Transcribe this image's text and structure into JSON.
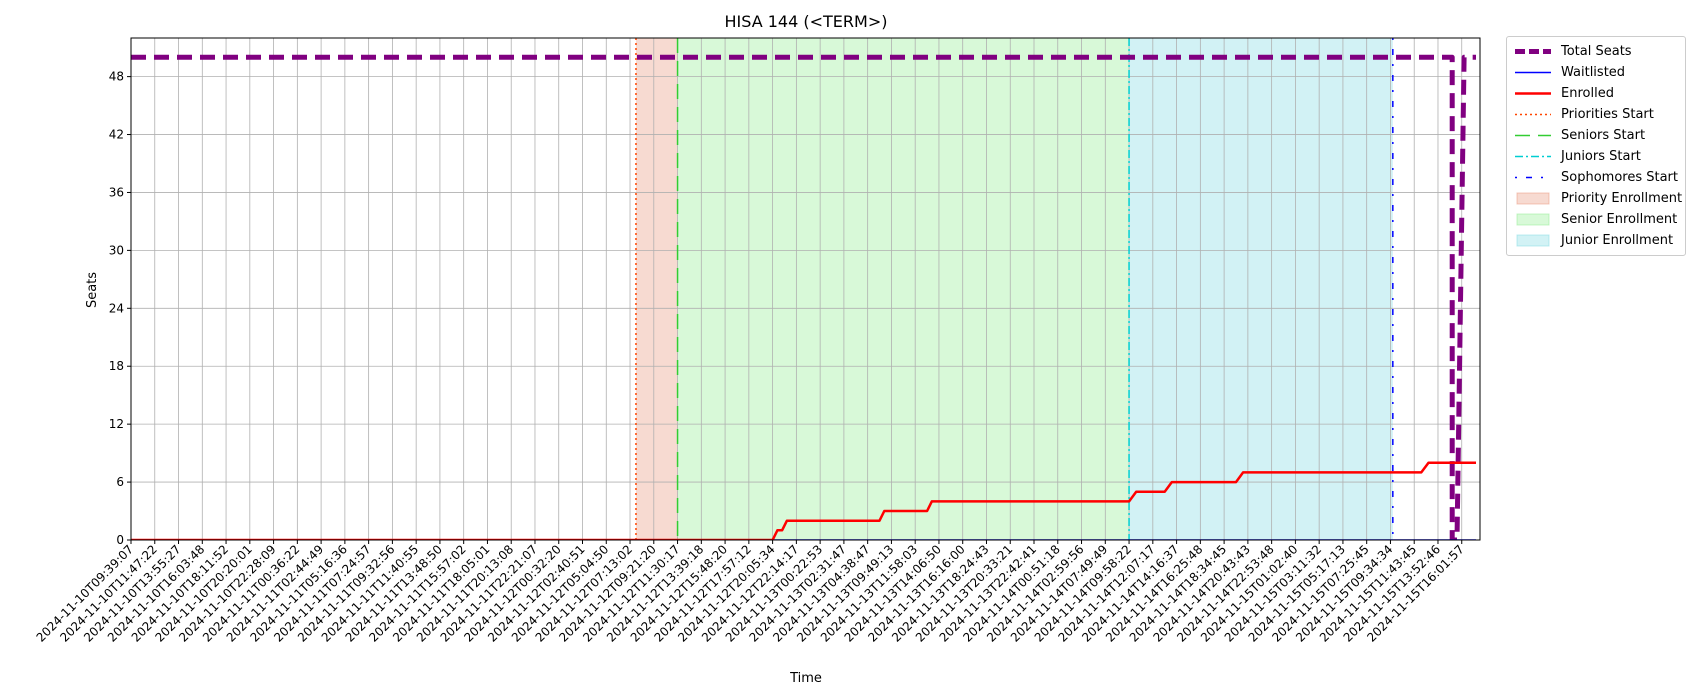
{
  "chart_data": {
    "type": "line",
    "title": "HISA 144 (<TERM>)",
    "xlabel": "Time",
    "ylabel": "Seats",
    "ylim": [
      0,
      52
    ],
    "yticks": [
      0,
      6,
      12,
      18,
      24,
      30,
      36,
      42,
      48
    ],
    "grid": true,
    "legend_position": "outside top-right",
    "x_tick_labels": [
      "2024-11-10T09:39:07",
      "2024-11-10T11:47:22",
      "2024-11-10T13:55:27",
      "2024-11-10T16:03:48",
      "2024-11-10T18:11:52",
      "2024-11-10T20:20:01",
      "2024-11-10T22:28:09",
      "2024-11-11T00:36:22",
      "2024-11-11T02:44:49",
      "2024-11-11T05:16:36",
      "2024-11-11T07:24:57",
      "2024-11-11T09:32:56",
      "2024-11-11T11:40:55",
      "2024-11-11T13:48:50",
      "2024-11-11T15:57:02",
      "2024-11-11T18:05:01",
      "2024-11-11T20:13:08",
      "2024-11-11T22:21:07",
      "2024-11-12T00:32:20",
      "2024-11-12T02:40:51",
      "2024-11-12T05:04:50",
      "2024-11-12T07:13:02",
      "2024-11-12T09:21:20",
      "2024-11-12T11:30:17",
      "2024-11-12T13:39:18",
      "2024-11-12T15:48:20",
      "2024-11-12T17:57:12",
      "2024-11-12T20:05:34",
      "2024-11-12T22:14:17",
      "2024-11-13T00:22:53",
      "2024-11-13T02:31:47",
      "2024-11-13T04:38:47",
      "2024-11-13T09:49:13",
      "2024-11-13T11:58:03",
      "2024-11-13T14:06:50",
      "2024-11-13T16:16:00",
      "2024-11-13T18:24:43",
      "2024-11-13T20:33:21",
      "2024-11-13T22:42:41",
      "2024-11-14T00:51:18",
      "2024-11-14T02:59:56",
      "2024-11-14T07:49:49",
      "2024-11-14T09:58:22",
      "2024-11-14T12:07:17",
      "2024-11-14T14:16:37",
      "2024-11-14T16:25:48",
      "2024-11-14T18:34:45",
      "2024-11-14T20:43:43",
      "2024-11-14T22:53:48",
      "2024-11-15T01:02:40",
      "2024-11-15T03:11:32",
      "2024-11-15T05:17:13",
      "2024-11-15T07:25:45",
      "2024-11-15T09:34:34",
      "2024-11-15T11:43:45",
      "2024-11-15T13:52:46",
      "2024-11-15T16:01:57"
    ],
    "series": [
      {
        "name": "Total Seats",
        "color": "#800080",
        "style": "dashed",
        "points": [
          [
            0,
            50
          ],
          [
            55.6,
            50
          ],
          [
            55.6,
            0
          ],
          [
            55.8,
            0
          ],
          [
            56.1,
            50
          ],
          [
            56.6,
            50
          ]
        ]
      },
      {
        "name": "Waitlisted",
        "color": "#0000ff",
        "style": "solid",
        "points": [
          [
            0,
            0
          ],
          [
            56.6,
            0
          ]
        ]
      },
      {
        "name": "Enrolled",
        "color": "#ff0000",
        "style": "solid",
        "points": [
          [
            0,
            0
          ],
          [
            27.0,
            0
          ],
          [
            27.2,
            1
          ],
          [
            27.4,
            1
          ],
          [
            27.6,
            2
          ],
          [
            31.5,
            2
          ],
          [
            31.7,
            3
          ],
          [
            33.5,
            3
          ],
          [
            33.7,
            4
          ],
          [
            42.0,
            4
          ],
          [
            42.3,
            5
          ],
          [
            43.5,
            5
          ],
          [
            43.8,
            6
          ],
          [
            46.5,
            6
          ],
          [
            46.8,
            7
          ],
          [
            54.3,
            7
          ],
          [
            54.6,
            8
          ],
          [
            56.6,
            8
          ]
        ]
      }
    ],
    "vertical_lines": [
      {
        "name": "Priorities Start",
        "x": 21.25,
        "color": "#ff4500",
        "style": "dotted"
      },
      {
        "name": "Seniors Start",
        "x": 23.0,
        "color": "#32cd32",
        "style": "dashed"
      },
      {
        "name": "Juniors Start",
        "x": 42.0,
        "color": "#00ced1",
        "style": "dashdot"
      },
      {
        "name": "Sophomores Start",
        "x": 53.1,
        "color": "#0000ff",
        "style": "loosedashdot"
      }
    ],
    "spans": [
      {
        "name": "Priority Enrollment",
        "x0": 21.25,
        "x1": 23.0,
        "color": "#e9967a"
      },
      {
        "name": "Senior Enrollment",
        "x0": 23.0,
        "x1": 42.0,
        "color": "#90ee90"
      },
      {
        "name": "Junior Enrollment",
        "x0": 42.0,
        "x1": 53.1,
        "color": "#7fdbe3"
      }
    ]
  }
}
